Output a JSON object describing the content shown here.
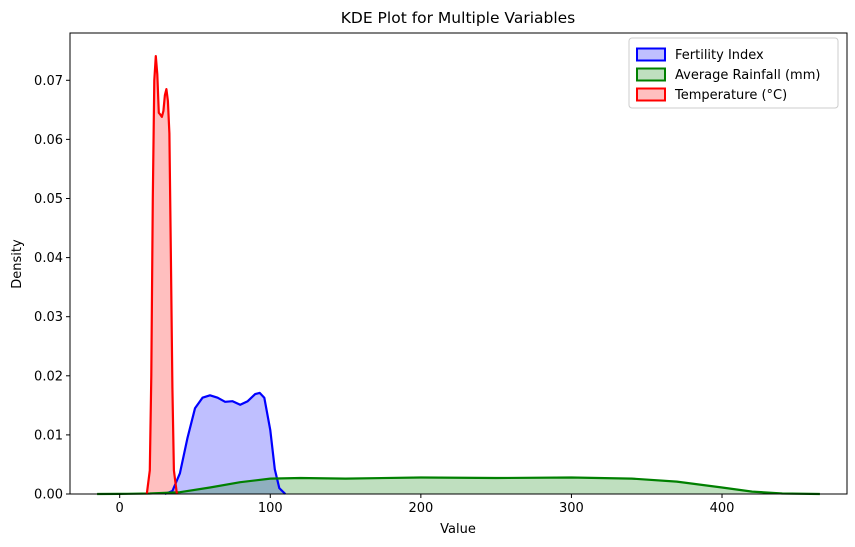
{
  "chart_data": {
    "type": "area",
    "title": "KDE Plot for Multiple Variables",
    "xlabel": "Value",
    "ylabel": "Density",
    "xlim": [
      -33,
      483
    ],
    "ylim": [
      0,
      0.078
    ],
    "xticks": [
      0,
      100,
      200,
      300,
      400
    ],
    "yticks": [
      0.0,
      0.01,
      0.02,
      0.03,
      0.04,
      0.05,
      0.06,
      0.07
    ],
    "ytick_labels": [
      "0.00",
      "0.01",
      "0.02",
      "0.03",
      "0.04",
      "0.05",
      "0.06",
      "0.07"
    ],
    "grid": false,
    "legend_position": "top-right",
    "series": [
      {
        "name": "Fertility Index",
        "color": "#0000ff",
        "fill": "#bfbfff",
        "points": [
          [
            30,
            0
          ],
          [
            35,
            0.0005
          ],
          [
            40,
            0.0035
          ],
          [
            45,
            0.0095
          ],
          [
            50,
            0.0145
          ],
          [
            55,
            0.0163
          ],
          [
            60,
            0.0167
          ],
          [
            65,
            0.0163
          ],
          [
            70,
            0.0156
          ],
          [
            75,
            0.0157
          ],
          [
            80,
            0.0151
          ],
          [
            85,
            0.0157
          ],
          [
            90,
            0.0169
          ],
          [
            93,
            0.0171
          ],
          [
            96,
            0.0163
          ],
          [
            100,
            0.0108
          ],
          [
            103,
            0.0042
          ],
          [
            106,
            0.001
          ],
          [
            110,
            0
          ]
        ]
      },
      {
        "name": "Average Rainfall (mm)",
        "color": "#008000",
        "fill": "#bfdfbf",
        "points": [
          [
            -15,
            0
          ],
          [
            0,
            2e-05
          ],
          [
            20,
            8e-05
          ],
          [
            40,
            0.0003
          ],
          [
            60,
            0.0011
          ],
          [
            80,
            0.002
          ],
          [
            100,
            0.0026
          ],
          [
            120,
            0.0027
          ],
          [
            150,
            0.0026
          ],
          [
            200,
            0.0028
          ],
          [
            250,
            0.0027
          ],
          [
            300,
            0.0028
          ],
          [
            340,
            0.0026
          ],
          [
            370,
            0.0021
          ],
          [
            400,
            0.0011
          ],
          [
            420,
            0.0004
          ],
          [
            440,
            8e-05
          ],
          [
            465,
            0
          ]
        ]
      },
      {
        "name": "Temperature (°C)",
        "color": "#ff0000",
        "fill": "#ffbfbf",
        "points": [
          [
            18,
            0
          ],
          [
            20,
            0.004
          ],
          [
            21,
            0.02
          ],
          [
            22,
            0.05
          ],
          [
            23,
            0.07
          ],
          [
            24,
            0.0741
          ],
          [
            25,
            0.071
          ],
          [
            26,
            0.0645
          ],
          [
            27,
            0.0642
          ],
          [
            28,
            0.0638
          ],
          [
            29,
            0.0648
          ],
          [
            30,
            0.0675
          ],
          [
            31,
            0.0685
          ],
          [
            32,
            0.0665
          ],
          [
            33,
            0.061
          ],
          [
            34,
            0.04
          ],
          [
            35,
            0.018
          ],
          [
            36,
            0.004
          ],
          [
            38,
            0
          ]
        ]
      }
    ]
  }
}
